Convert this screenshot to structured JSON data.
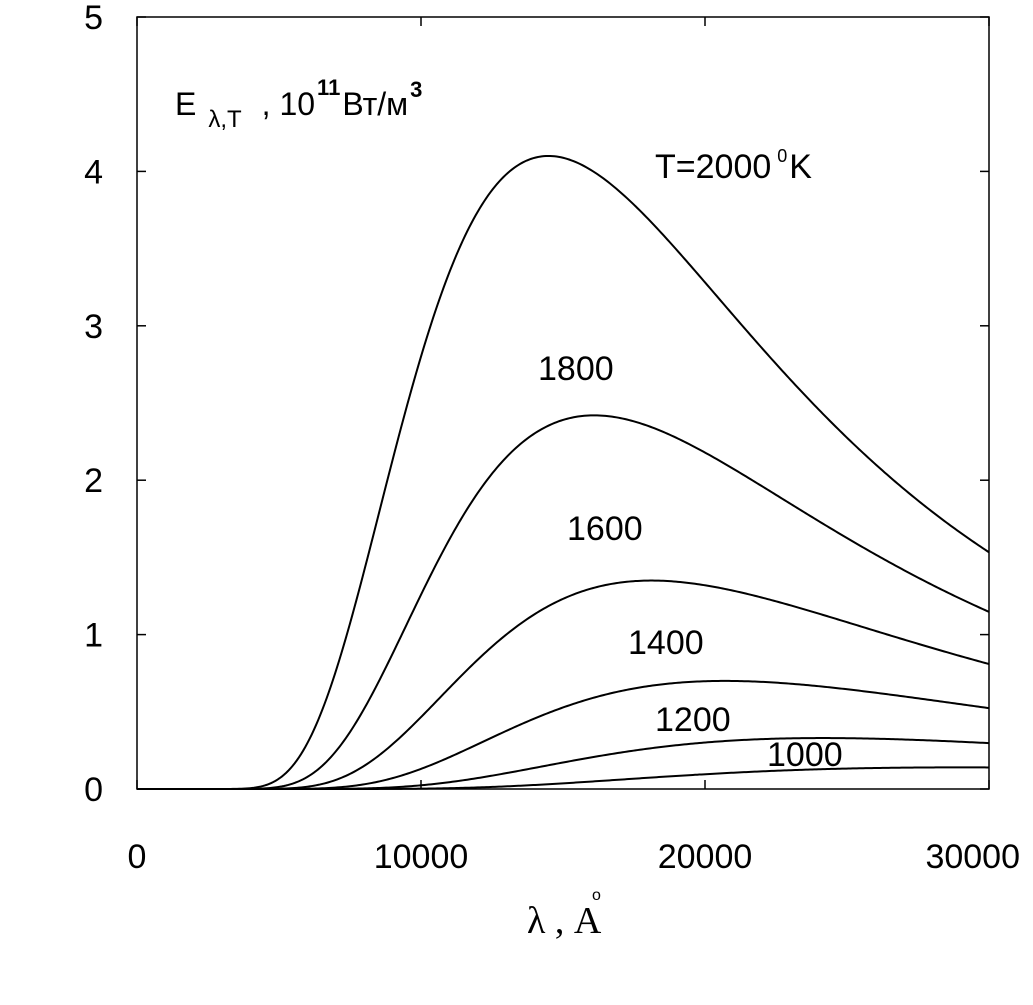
{
  "chart_data": {
    "type": "line",
    "xlim": [
      0,
      30000
    ],
    "ylim": [
      0,
      5
    ],
    "x_ticks": [
      "0",
      "10000",
      "20000",
      "30000"
    ],
    "y_ticks": [
      "0",
      "1",
      "2",
      "3",
      "4",
      "5"
    ],
    "grid": false,
    "ylabel": {
      "base": "E",
      "subscript": "λ,T",
      "scale": ", 10",
      "exponent": "11",
      "unit": "Вт/м",
      "unit_exponent": "3"
    },
    "xlabel": {
      "base": "λ , A",
      "ring": "o"
    },
    "series": [
      {
        "temperature_K": 2000,
        "label": "T=2000",
        "label_sup": "0",
        "label_suffix": "K",
        "peak_y": 4.1
      },
      {
        "temperature_K": 1800,
        "label": "1800",
        "peak_y": 2.42
      },
      {
        "temperature_K": 1600,
        "label": "1600",
        "peak_y": 1.35
      },
      {
        "temperature_K": 1400,
        "label": "1400",
        "peak_y": 0.7
      },
      {
        "temperature_K": 1200,
        "label": "1200",
        "peak_y": 0.33
      },
      {
        "temperature_K": 1000,
        "label": "1000",
        "peak_y": 0.14
      }
    ],
    "colors": {
      "line": "#000000",
      "background": "#ffffff"
    }
  }
}
